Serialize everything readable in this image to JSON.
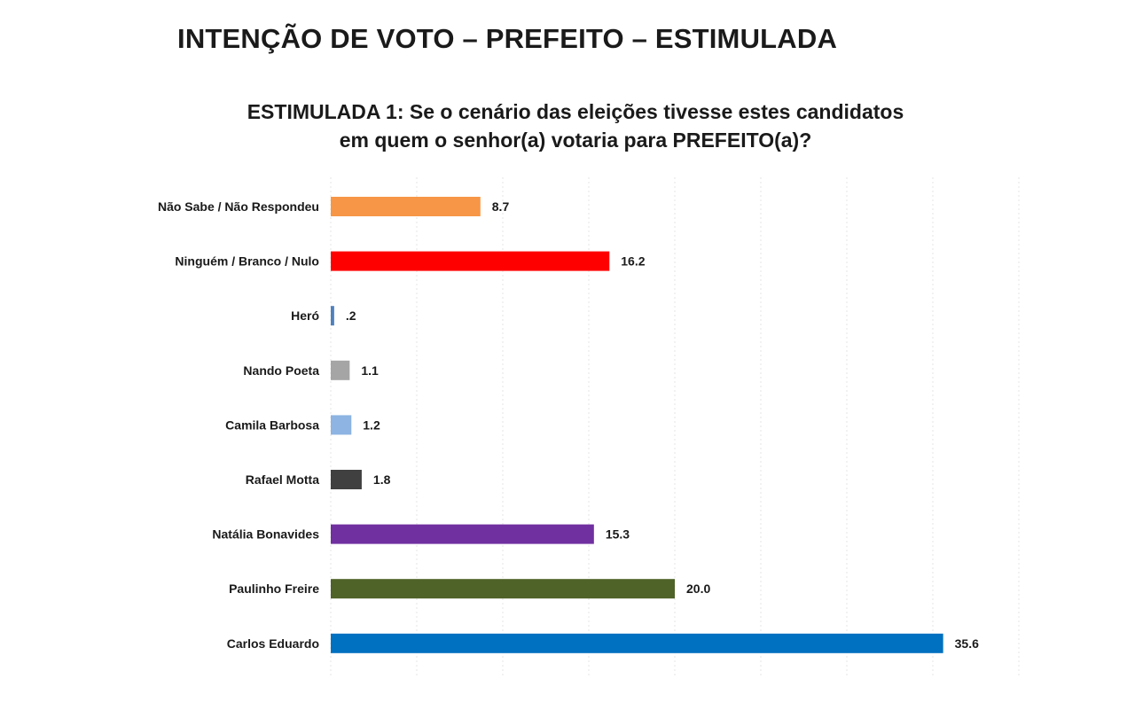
{
  "page": {
    "title": "INTENÇÃO DE VOTO – PREFEITO – ESTIMULADA"
  },
  "chart_data": {
    "type": "bar",
    "orientation": "horizontal",
    "title_line1": "ESTIMULADA 1: Se o cenário das eleições tivesse estes candidatos",
    "title_line2": "em quem o senhor(a) votaria para PREFEITO(a)?",
    "categories": [
      "Não Sabe / Não Respondeu",
      "Ninguém / Branco / Nulo",
      "Heró",
      "Nando Poeta",
      "Camila Barbosa",
      "Rafael Motta",
      "Natália Bonavides",
      "Paulinho Freire",
      "Carlos Eduardo"
    ],
    "values": [
      8.7,
      16.2,
      0.2,
      1.1,
      1.2,
      1.8,
      15.3,
      20.0,
      35.6
    ],
    "value_labels": [
      "8.7",
      "16.2",
      ".2",
      "1.1",
      "1.2",
      "1.8",
      "15.3",
      "20.0",
      "35.6"
    ],
    "colors": [
      "#F79646",
      "#FF0000",
      "#4F81BD",
      "#A5A5A5",
      "#8DB4E2",
      "#404040",
      "#7030A0",
      "#4F6228",
      "#0070C0"
    ],
    "xlim": [
      0,
      40
    ],
    "grid": true,
    "legend": "none"
  }
}
